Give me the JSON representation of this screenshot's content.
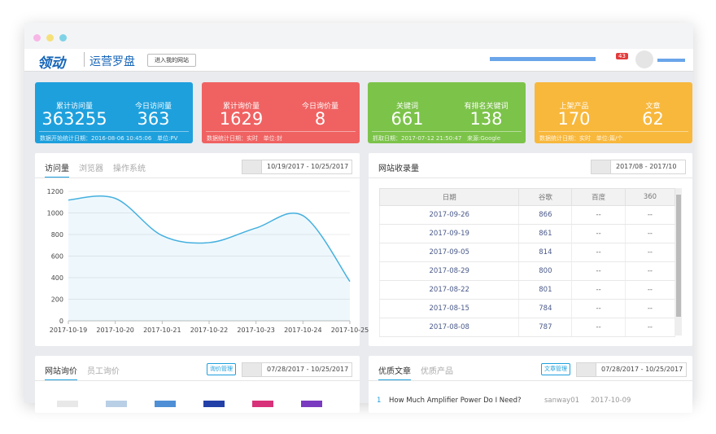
{
  "header": {
    "logo": "领动",
    "product": "运营罗盘",
    "site_button": "进入我的网站",
    "badge": "43"
  },
  "stats": [
    {
      "color": "#1ea0dd",
      "items": [
        {
          "label": "累计访问量",
          "value": 363255
        },
        {
          "label": "今日访问量",
          "value": 363
        }
      ],
      "note": "数据开始统计日期：2016-08-06 10:45:06   单位:PV"
    },
    {
      "color": "#f06262",
      "items": [
        {
          "label": "累计询价量",
          "value": 1629
        },
        {
          "label": "今日询价量",
          "value": 8
        }
      ],
      "note": "数据统计日期：实时   单位:封"
    },
    {
      "color": "#7cc34a",
      "items": [
        {
          "label": "关键词",
          "value": 661
        },
        {
          "label": "有排名关键词",
          "value": 138
        }
      ],
      "note": "抓取日期：2017-07-12 21:50:47   来源:Google"
    },
    {
      "color": "#f8b83c",
      "items": [
        {
          "label": "上架产品",
          "value": 170
        },
        {
          "label": "文章",
          "value": 62
        }
      ],
      "note": "数据统计日期：实时   单位:篇/个"
    }
  ],
  "visits": {
    "tabs": [
      "访问量",
      "浏览器",
      "操作系统"
    ],
    "date_range": "10/19/2017 - 10/25/2017"
  },
  "chart_data": {
    "type": "line",
    "categories": [
      "2017-10-19",
      "2017-10-20",
      "2017-10-21",
      "2017-10-22",
      "2017-10-23",
      "2017-10-24",
      "2017-10-25"
    ],
    "series": [
      {
        "name": "访问量",
        "color": "#45b0df",
        "values": [
          1120,
          1135,
          790,
          725,
          860,
          975,
          365
        ]
      }
    ],
    "ylim": [
      0,
      1200
    ],
    "yticks": [
      0,
      200,
      400,
      600,
      800,
      1000,
      1200
    ],
    "grid": true
  },
  "index": {
    "title": "网站收录量",
    "date_range": "2017/08 - 2017/10",
    "columns": [
      "日期",
      "谷歌",
      "百度",
      "360"
    ],
    "rows": [
      [
        "2017-09-26",
        866,
        "--",
        "--"
      ],
      [
        "2017-09-19",
        861,
        "--",
        "--"
      ],
      [
        "2017-09-05",
        814,
        "--",
        "--"
      ],
      [
        "2017-08-29",
        800,
        "--",
        "--"
      ],
      [
        "2017-08-22",
        801,
        "--",
        "--"
      ],
      [
        "2017-08-15",
        784,
        "--",
        "--"
      ],
      [
        "2017-08-08",
        787,
        "--",
        "--"
      ]
    ]
  },
  "inquiries": {
    "tabs": [
      "网站询价",
      "员工询价"
    ],
    "button": "询价管理",
    "date_range": "07/28/2017 - 10/25/2017"
  },
  "articles": {
    "tabs": [
      "优质文章",
      "优质产品"
    ],
    "button": "文章管理",
    "date_range": "07/28/2017 - 10/25/2017",
    "rows": [
      [
        "1",
        "How Much Amplifier Power Do I Need?",
        "sanway01",
        "2017-10-09"
      ]
    ]
  }
}
